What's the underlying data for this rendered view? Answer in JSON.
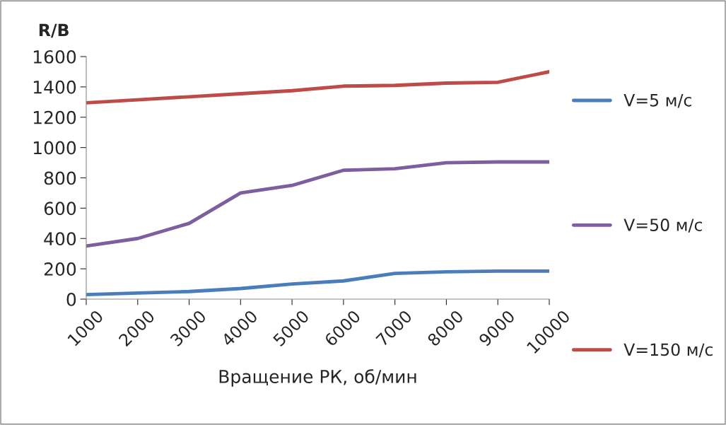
{
  "chart_data": {
    "type": "line",
    "ylabel": "R/B",
    "xlabel": "Вращение РК, об/мин",
    "categories": [
      "1000",
      "2000",
      "3000",
      "4000",
      "5000",
      "6000",
      "7000",
      "8000",
      "9000",
      "10000"
    ],
    "series": [
      {
        "name": "V=5 м/с",
        "color": "#4a7ebb",
        "values": [
          30,
          40,
          50,
          70,
          100,
          120,
          170,
          180,
          185,
          185
        ]
      },
      {
        "name": "V=50 м/с",
        "color": "#7d5fa0",
        "values": [
          350,
          400,
          500,
          700,
          750,
          850,
          860,
          900,
          905,
          905
        ]
      },
      {
        "name": "V=150 м/с",
        "color": "#be4b48",
        "values": [
          1295,
          1315,
          1335,
          1355,
          1375,
          1405,
          1410,
          1425,
          1430,
          1500
        ]
      }
    ],
    "ylim": [
      0,
      1600
    ],
    "yticks": [
      0,
      200,
      400,
      600,
      800,
      1000,
      1200,
      1400,
      1600
    ],
    "grid": false,
    "legend": "right",
    "marker": "none",
    "line_style": "solid"
  }
}
